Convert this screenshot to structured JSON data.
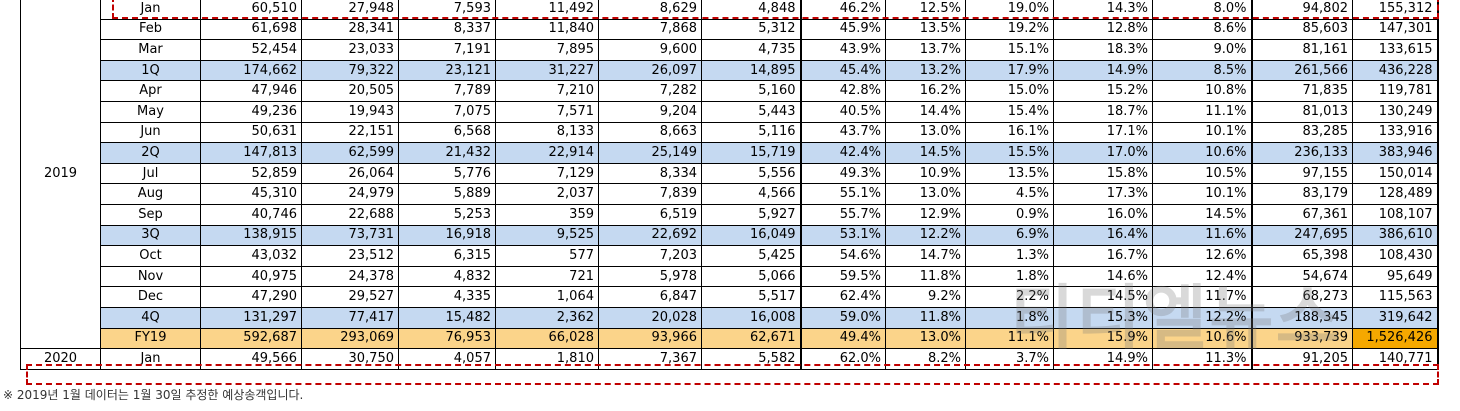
{
  "rows": [
    {
      "label": "Jan",
      "type": "m",
      "v": [
        "60,510",
        "27,948",
        "7,593",
        "11,492",
        "8,629",
        "4,848",
        "46.2%",
        "12.5%",
        "19.0%",
        "14.3%",
        "8.0%",
        "94,802",
        "155,312"
      ]
    },
    {
      "label": "Feb",
      "type": "m",
      "v": [
        "61,698",
        "28,341",
        "8,337",
        "11,840",
        "7,868",
        "5,312",
        "45.9%",
        "13.5%",
        "19.2%",
        "12.8%",
        "8.6%",
        "85,603",
        "147,301"
      ]
    },
    {
      "label": "Mar",
      "type": "m",
      "v": [
        "52,454",
        "23,033",
        "7,191",
        "7,895",
        "9,600",
        "4,735",
        "43.9%",
        "13.7%",
        "15.1%",
        "18.3%",
        "9.0%",
        "81,161",
        "133,615"
      ]
    },
    {
      "label": "1Q",
      "type": "q",
      "v": [
        "174,662",
        "79,322",
        "23,121",
        "31,227",
        "26,097",
        "14,895",
        "45.4%",
        "13.2%",
        "17.9%",
        "14.9%",
        "8.5%",
        "261,566",
        "436,228"
      ]
    },
    {
      "label": "Apr",
      "type": "m",
      "v": [
        "47,946",
        "20,505",
        "7,789",
        "7,210",
        "7,282",
        "5,160",
        "42.8%",
        "16.2%",
        "15.0%",
        "15.2%",
        "10.8%",
        "71,835",
        "119,781"
      ]
    },
    {
      "label": "May",
      "type": "m",
      "v": [
        "49,236",
        "19,943",
        "7,075",
        "7,571",
        "9,204",
        "5,443",
        "40.5%",
        "14.4%",
        "15.4%",
        "18.7%",
        "11.1%",
        "81,013",
        "130,249"
      ]
    },
    {
      "label": "Jun",
      "type": "m",
      "v": [
        "50,631",
        "22,151",
        "6,568",
        "8,133",
        "8,663",
        "5,116",
        "43.7%",
        "13.0%",
        "16.1%",
        "17.1%",
        "10.1%",
        "83,285",
        "133,916"
      ]
    },
    {
      "label": "2Q",
      "type": "q",
      "v": [
        "147,813",
        "62,599",
        "21,432",
        "22,914",
        "25,149",
        "15,719",
        "42.4%",
        "14.5%",
        "15.5%",
        "17.0%",
        "10.6%",
        "236,133",
        "383,946"
      ]
    },
    {
      "label": "Jul",
      "type": "m",
      "v": [
        "52,859",
        "26,064",
        "5,776",
        "7,129",
        "8,334",
        "5,556",
        "49.3%",
        "10.9%",
        "13.5%",
        "15.8%",
        "10.5%",
        "97,155",
        "150,014"
      ]
    },
    {
      "label": "Aug",
      "type": "m",
      "v": [
        "45,310",
        "24,979",
        "5,889",
        "2,037",
        "7,839",
        "4,566",
        "55.1%",
        "13.0%",
        "4.5%",
        "17.3%",
        "10.1%",
        "83,179",
        "128,489"
      ]
    },
    {
      "label": "Sep",
      "type": "m",
      "v": [
        "40,746",
        "22,688",
        "5,253",
        "359",
        "6,519",
        "5,927",
        "55.7%",
        "12.9%",
        "0.9%",
        "16.0%",
        "14.5%",
        "67,361",
        "108,107"
      ]
    },
    {
      "label": "3Q",
      "type": "q",
      "v": [
        "138,915",
        "73,731",
        "16,918",
        "9,525",
        "22,692",
        "16,049",
        "53.1%",
        "12.2%",
        "6.9%",
        "16.4%",
        "11.6%",
        "247,695",
        "386,610"
      ]
    },
    {
      "label": "Oct",
      "type": "m",
      "v": [
        "43,032",
        "23,512",
        "6,315",
        "577",
        "7,203",
        "5,425",
        "54.6%",
        "14.7%",
        "1.3%",
        "16.7%",
        "12.6%",
        "65,398",
        "108,430"
      ]
    },
    {
      "label": "Nov",
      "type": "m",
      "v": [
        "40,975",
        "24,378",
        "4,832",
        "721",
        "5,978",
        "5,066",
        "59.5%",
        "11.8%",
        "1.8%",
        "14.6%",
        "12.4%",
        "54,674",
        "95,649"
      ]
    },
    {
      "label": "Dec",
      "type": "m",
      "v": [
        "47,290",
        "29,527",
        "4,335",
        "1,064",
        "6,847",
        "5,517",
        "62.4%",
        "9.2%",
        "2.2%",
        "14.5%",
        "11.7%",
        "68,273",
        "115,563"
      ]
    },
    {
      "label": "4Q",
      "type": "q",
      "v": [
        "131,297",
        "77,417",
        "15,482",
        "2,362",
        "20,028",
        "16,008",
        "59.0%",
        "11.8%",
        "1.8%",
        "15.3%",
        "12.2%",
        "188,345",
        "319,642"
      ]
    },
    {
      "label": "FY19",
      "type": "fy",
      "v": [
        "592,687",
        "293,069",
        "76,953",
        "66,028",
        "93,966",
        "62,671",
        "49.4%",
        "13.0%",
        "11.1%",
        "15.9%",
        "10.6%",
        "933,739",
        "1,526,426"
      ]
    },
    {
      "label": "Jan",
      "type": "m",
      "v": [
        "49,566",
        "30,750",
        "4,057",
        "1,810",
        "7,367",
        "5,582",
        "62.0%",
        "8.2%",
        "3.7%",
        "14.9%",
        "11.3%",
        "91,205",
        "140,771"
      ]
    }
  ],
  "years": {
    "y2019": "2019",
    "y2020": "2020"
  },
  "note": "※ 2019년 1월 데이터는 1월 30일 추정한 예상송객입니다.",
  "watermark": "티티엘뉴스",
  "colors": {
    "quarter": "#c5d9f1",
    "fy": "#fbd48a",
    "fy_last": "#f5a800",
    "selection": "#c00000"
  }
}
